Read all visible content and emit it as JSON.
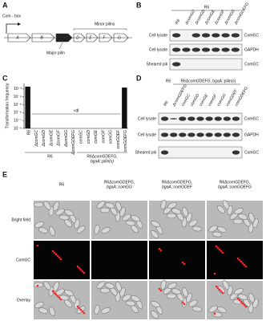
{
  "panel_a": {
    "letter": "A",
    "combox": "Com - box",
    "genes": [
      "A",
      "B",
      "C",
      "D",
      "E",
      "F",
      "G"
    ],
    "minor": "Minor pilins",
    "major": "Major pilin"
  },
  "panel_b": {
    "letter": "B",
    "group": "R6",
    "lanes": [
      "R6",
      "ΔcomGC",
      "ΔcomGD",
      "ΔcomGE",
      "ΔcomGF",
      "ΔcomGG",
      "ΔcomGDEFG"
    ],
    "rows": [
      "Cell lysate",
      "Cell lysate",
      "Sheared pili"
    ],
    "proteins": [
      "ComGC",
      "GAPDH",
      "ComGC"
    ]
  },
  "chart_data": {
    "type": "bar",
    "letter": "C",
    "y_label": "Transformation frequency",
    "categories": [
      "R6",
      "ΔcomGC",
      "ΔcomGD",
      "ΔcomGE",
      "ΔcomGF",
      "ΔcomGG",
      "ΔcomGDEFG",
      "comGC",
      "comGD",
      "comGE",
      "comGF",
      "comGG",
      "comGDEF",
      "comGDEFG"
    ],
    "values": [
      0.002,
      null,
      null,
      null,
      null,
      null,
      null,
      null,
      null,
      null,
      null,
      null,
      null,
      0.0015
    ],
    "color": "#111111",
    "log_scale": true,
    "ylim": [
      1e-08,
      0.005
    ],
    "yticks": [
      {
        "value": 1e-08,
        "label": "10⁻⁸"
      },
      {
        "value": 1e-07,
        "label": "10⁻⁷"
      },
      {
        "value": 1e-06,
        "label": "10⁻⁶"
      },
      {
        "value": 1e-05,
        "label": "10⁻⁵"
      },
      {
        "value": 0.0001,
        "label": "10⁻⁴"
      },
      {
        "value": 0.001,
        "label": "10⁻³"
      }
    ],
    "annotation": "<dl",
    "group1": "R6",
    "group2": [
      "R6ΔcomGDEFG,",
      "bgaA::pilin(s)"
    ]
  },
  "panel_d": {
    "letter": "D",
    "group1": "R6",
    "group2": "R6ΔcomGDEFG, bgaA::pilin(s)",
    "lanes": [
      "R6",
      "ΔcomGDEFG",
      "comGC",
      "comGD",
      "comGE",
      "comGF",
      "comGG",
      "comGDEF",
      "comGDEFG"
    ],
    "rows": [
      "Cell lysate",
      "Cell lysate",
      "Sheared pili"
    ],
    "proteins": [
      "ComGC",
      "GAPDH",
      "ComGC"
    ]
  },
  "panel_e": {
    "letter": "E",
    "columns": [
      [
        "R6"
      ],
      [
        "R6ΔcomGDEFG,",
        "bgaA::comGG"
      ],
      [
        "R6ΔcomGDEFG,",
        "bgaA::comGDEF"
      ],
      [
        "R6ΔcomGDEFG,",
        "bgaA::comGDEFG"
      ]
    ],
    "rows": [
      "Bright field",
      "ComGC",
      "Overlay"
    ]
  }
}
